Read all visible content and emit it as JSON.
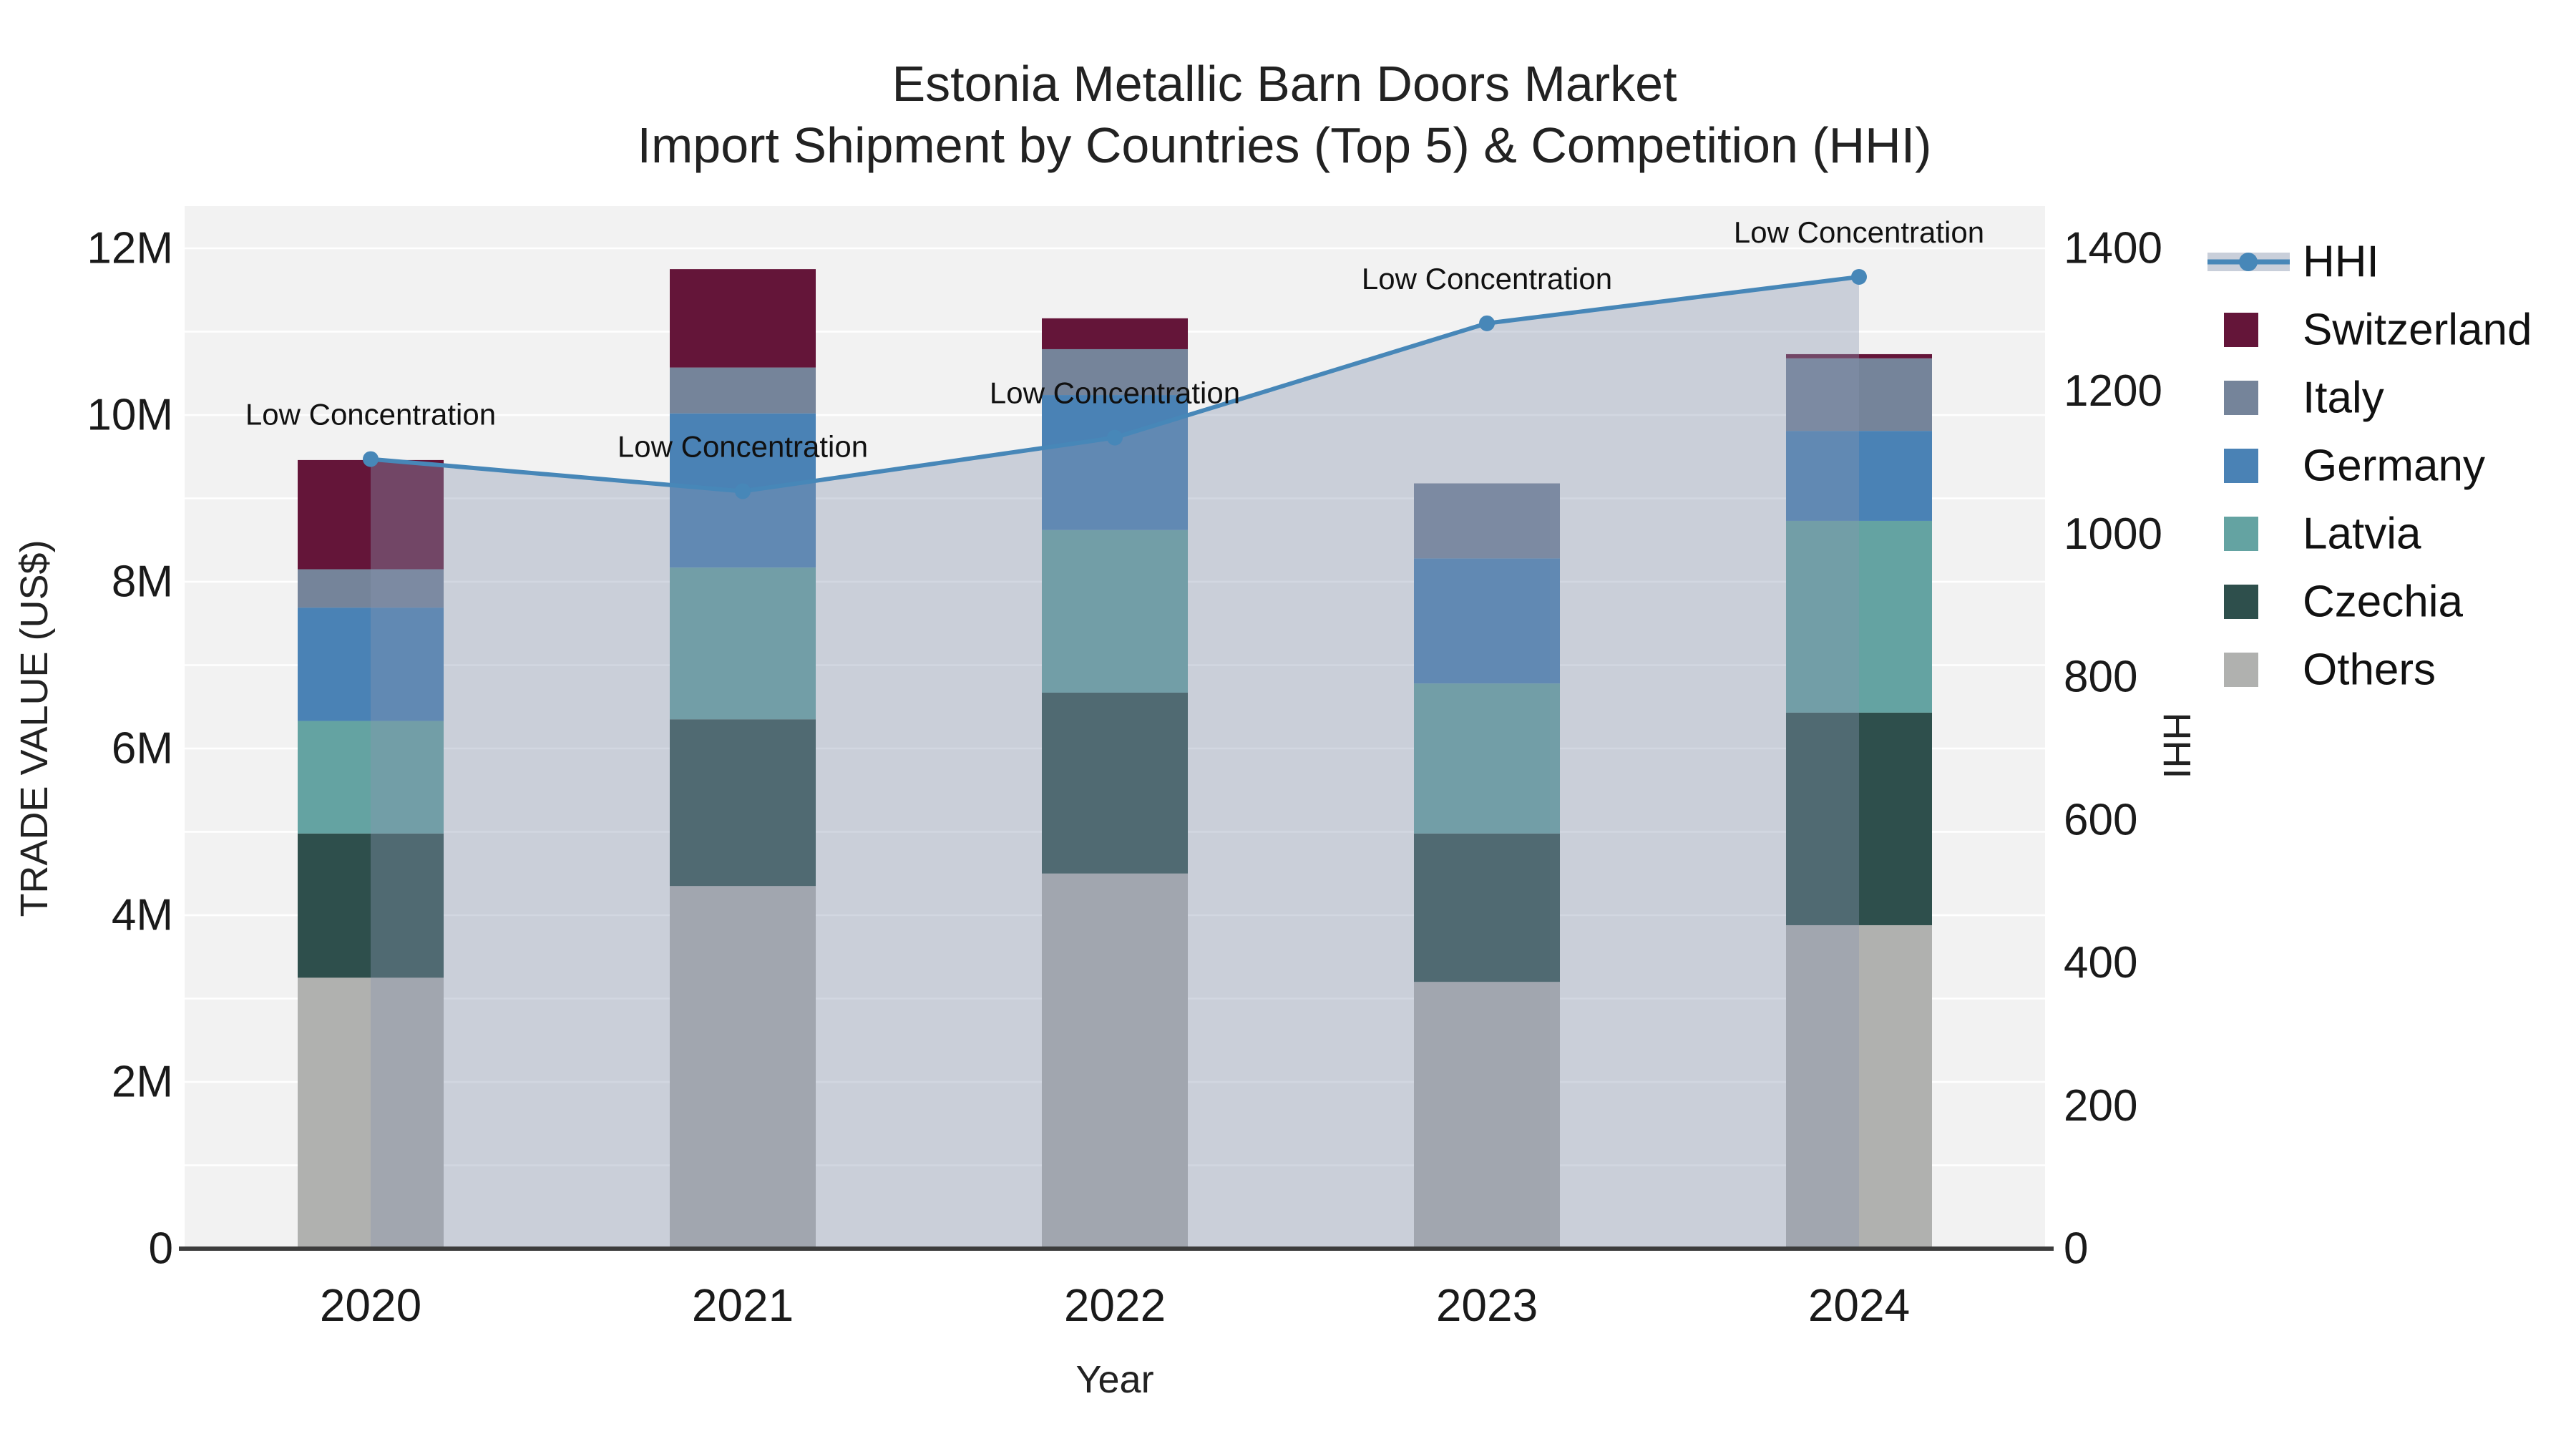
{
  "title": {
    "line1": "Estonia Metallic Barn Doors Market",
    "line2": "Import Shipment by Countries (Top 5) & Competition (HHI)"
  },
  "axes": {
    "x_title": "Year",
    "y_left_title": "TRADE VALUE (US$)",
    "y_right_title": "HHI",
    "y_left_tick_labels": [
      "0",
      "2M",
      "4M",
      "6M",
      "8M",
      "10M",
      "12M"
    ],
    "y_right_tick_labels": [
      "0",
      "200",
      "400",
      "600",
      "800",
      "1000",
      "1200",
      "1400"
    ]
  },
  "legend": {
    "hhi_label": "HHI",
    "order_top_to_bottom": [
      "HHI",
      "Switzerland",
      "Italy",
      "Germany",
      "Latvia",
      "Czechia",
      "Others"
    ]
  },
  "colors": {
    "plot_bg": "#f2f2f2",
    "grid": "#ffffff",
    "axis_line": "#3c3c3c",
    "hhi_line": "#4787b8",
    "hhi_area_fill": "rgba(136,150,175,0.38)",
    "hhi_legend_band": "#c9cfda",
    "annotation_text": "#111111"
  },
  "chart_data": {
    "type": "bar+line",
    "title": "Estonia Metallic Barn Doors Market — Import Shipment by Countries (Top 5) & Competition (HHI)",
    "categories": [
      "2020",
      "2021",
      "2022",
      "2023",
      "2024"
    ],
    "xlabel": "Year",
    "ylabel_left": "TRADE VALUE (US$)",
    "ylabel_right": "HHI",
    "ylim_left_millions_usd": [
      0,
      12
    ],
    "ylim_right": [
      0,
      1400
    ],
    "grid": "on",
    "legend_position": "right",
    "bar_stack_order_bottom_to_top": [
      "Others",
      "Czechia",
      "Latvia",
      "Germany",
      "Italy",
      "Switzerland"
    ],
    "series": [
      {
        "name": "Others",
        "color": "#b0b1af",
        "values_millions_usd": [
          3.25,
          4.35,
          4.5,
          3.2,
          3.88
        ]
      },
      {
        "name": "Czechia",
        "color": "#2e4f4c",
        "values_millions_usd": [
          1.73,
          2.0,
          2.17,
          1.78,
          2.55
        ]
      },
      {
        "name": "Latvia",
        "color": "#64a3a2",
        "values_millions_usd": [
          1.35,
          1.82,
          1.95,
          1.8,
          2.3
        ]
      },
      {
        "name": "Germany",
        "color": "#4a82b5",
        "values_millions_usd": [
          1.36,
          1.85,
          1.62,
          1.5,
          1.08
        ]
      },
      {
        "name": "Italy",
        "color": "#75849a",
        "values_millions_usd": [
          0.46,
          0.55,
          0.55,
          0.9,
          0.87
        ]
      },
      {
        "name": "Switzerland",
        "color": "#641539",
        "values_millions_usd": [
          1.31,
          1.18,
          0.37,
          0.0,
          0.05
        ]
      }
    ],
    "bar_totals_millions_usd": [
      9.46,
      11.75,
      11.16,
      9.18,
      10.73
    ],
    "line_series": {
      "name": "HHI",
      "color": "#4787b8",
      "values": [
        1105,
        1060,
        1135,
        1295,
        1360
      ],
      "point_annotations": [
        "Low Concentration",
        "Low Concentration",
        "Low Concentration",
        "Low Concentration",
        "Low Concentration"
      ]
    }
  }
}
